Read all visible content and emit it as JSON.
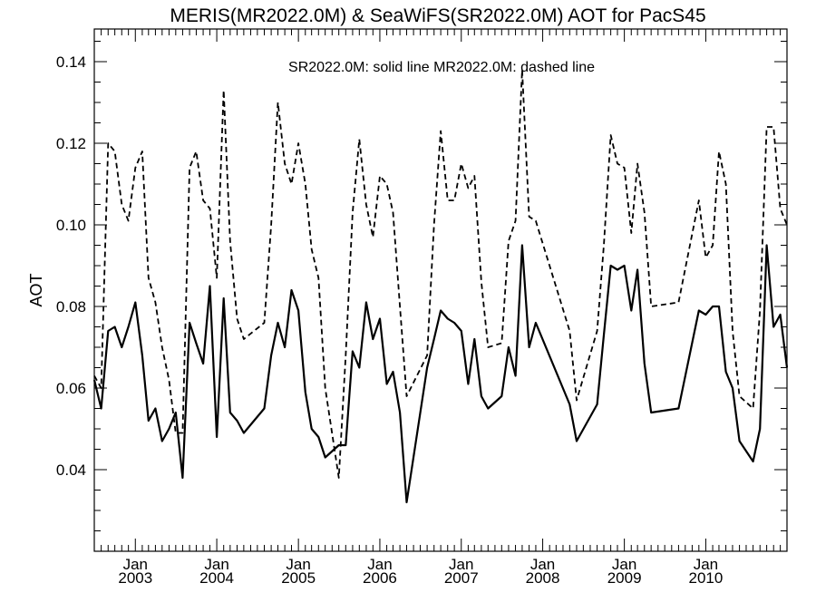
{
  "chart_data": {
    "type": "line",
    "title": "MERIS(MR2022.0M) & SeaWiFS(SR2022.0M)  AOT for PacS45",
    "annotation": "SR2022.0M: solid line   MR2022.0M: dashed line",
    "ylabel": "AOT",
    "xlabel": "",
    "xlim": [
      "2002-07-01",
      "2010-12-31"
    ],
    "ylim": [
      0.02,
      0.148
    ],
    "y_ticks": [
      {
        "value": 0.04,
        "label": "0.04"
      },
      {
        "value": 0.06,
        "label": "0.06"
      },
      {
        "value": 0.08,
        "label": "0.08"
      },
      {
        "value": 0.1,
        "label": "0.10"
      },
      {
        "value": 0.12,
        "label": "0.12"
      },
      {
        "value": 0.14,
        "label": "0.14"
      }
    ],
    "x_ticks": [
      {
        "date": "2003-01-01",
        "month": "Jan",
        "year": "2003"
      },
      {
        "date": "2004-01-01",
        "month": "Jan",
        "year": "2004"
      },
      {
        "date": "2005-01-01",
        "month": "Jan",
        "year": "2005"
      },
      {
        "date": "2006-01-01",
        "month": "Jan",
        "year": "2006"
      },
      {
        "date": "2007-01-01",
        "month": "Jan",
        "year": "2007"
      },
      {
        "date": "2008-01-01",
        "month": "Jan",
        "year": "2008"
      },
      {
        "date": "2009-01-01",
        "month": "Jan",
        "year": "2009"
      },
      {
        "date": "2010-01-01",
        "month": "Jan",
        "year": "2010"
      }
    ],
    "grid": false,
    "series": [
      {
        "style": "solid",
        "points": [
          [
            "2002-07-01",
            0.062
          ],
          [
            "2002-08-01",
            0.055
          ],
          [
            "2002-09-01",
            0.074
          ],
          [
            "2002-10-01",
            0.075
          ],
          [
            "2002-11-01",
            0.07
          ],
          [
            "2002-12-01",
            0.075
          ],
          [
            "2003-01-01",
            0.081
          ],
          [
            "2003-02-01",
            0.068
          ],
          [
            "2003-03-01",
            0.052
          ],
          [
            "2003-04-01",
            0.055
          ],
          [
            "2003-05-01",
            0.047
          ],
          [
            "2003-06-01",
            0.05
          ],
          [
            "2003-07-01",
            0.054
          ],
          [
            "2003-08-01",
            0.038
          ],
          [
            "2003-09-01",
            0.076
          ],
          [
            "2003-10-01",
            0.071
          ],
          [
            "2003-11-01",
            0.066
          ],
          [
            "2003-12-01",
            0.085
          ],
          [
            "2004-01-01",
            0.048
          ],
          [
            "2004-02-01",
            0.082
          ],
          [
            "2004-03-01",
            0.054
          ],
          [
            "2004-04-01",
            0.052
          ],
          [
            "2004-05-01",
            0.049
          ],
          [
            "2004-08-01",
            0.055
          ],
          [
            "2004-09-01",
            0.068
          ],
          [
            "2004-10-01",
            0.076
          ],
          [
            "2004-11-01",
            0.07
          ],
          [
            "2004-12-01",
            0.084
          ],
          [
            "2005-01-01",
            0.079
          ],
          [
            "2005-02-01",
            0.059
          ],
          [
            "2005-03-01",
            0.05
          ],
          [
            "2005-04-01",
            0.048
          ],
          [
            "2005-05-01",
            0.043
          ],
          [
            "2005-07-01",
            0.046
          ],
          [
            "2005-08-01",
            0.046
          ],
          [
            "2005-09-01",
            0.069
          ],
          [
            "2005-10-01",
            0.065
          ],
          [
            "2005-11-01",
            0.081
          ],
          [
            "2005-12-01",
            0.072
          ],
          [
            "2006-01-01",
            0.077
          ],
          [
            "2006-02-01",
            0.061
          ],
          [
            "2006-03-01",
            0.064
          ],
          [
            "2006-04-01",
            0.054
          ],
          [
            "2006-05-01",
            0.032
          ],
          [
            "2006-08-01",
            0.065
          ],
          [
            "2006-09-01",
            0.072
          ],
          [
            "2006-10-01",
            0.079
          ],
          [
            "2006-11-01",
            0.077
          ],
          [
            "2006-12-01",
            0.076
          ],
          [
            "2007-01-01",
            0.074
          ],
          [
            "2007-02-01",
            0.061
          ],
          [
            "2007-03-01",
            0.072
          ],
          [
            "2007-04-01",
            0.058
          ],
          [
            "2007-05-01",
            0.055
          ],
          [
            "2007-07-01",
            0.058
          ],
          [
            "2007-08-01",
            0.07
          ],
          [
            "2007-09-01",
            0.063
          ],
          [
            "2007-10-01",
            0.095
          ],
          [
            "2007-11-01",
            0.07
          ],
          [
            "2007-12-01",
            0.076
          ],
          [
            "2008-05-01",
            0.056
          ],
          [
            "2008-06-01",
            0.047
          ],
          [
            "2008-09-01",
            0.056
          ],
          [
            "2008-10-01",
            0.073
          ],
          [
            "2008-11-01",
            0.09
          ],
          [
            "2008-12-01",
            0.089
          ],
          [
            "2009-01-01",
            0.09
          ],
          [
            "2009-02-01",
            0.079
          ],
          [
            "2009-03-01",
            0.089
          ],
          [
            "2009-04-01",
            0.066
          ],
          [
            "2009-05-01",
            0.054
          ],
          [
            "2009-09-01",
            0.055
          ],
          [
            "2009-12-01",
            0.079
          ],
          [
            "2010-01-01",
            0.078
          ],
          [
            "2010-02-01",
            0.08
          ],
          [
            "2010-03-01",
            0.08
          ],
          [
            "2010-04-01",
            0.064
          ],
          [
            "2010-05-01",
            0.06
          ],
          [
            "2010-06-01",
            0.047
          ],
          [
            "2010-08-01",
            0.042
          ],
          [
            "2010-09-01",
            0.05
          ],
          [
            "2010-10-01",
            0.095
          ],
          [
            "2010-11-01",
            0.075
          ],
          [
            "2010-12-01",
            0.078
          ],
          [
            "2010-12-31",
            0.065
          ]
        ]
      },
      {
        "style": "dashed",
        "points": [
          [
            "2002-07-01",
            0.063
          ],
          [
            "2002-08-01",
            0.06
          ],
          [
            "2002-09-01",
            0.12
          ],
          [
            "2002-10-01",
            0.118
          ],
          [
            "2002-11-01",
            0.105
          ],
          [
            "2002-12-01",
            0.101
          ],
          [
            "2003-01-01",
            0.114
          ],
          [
            "2003-02-01",
            0.118
          ],
          [
            "2003-03-01",
            0.087
          ],
          [
            "2003-04-01",
            0.081
          ],
          [
            "2003-05-01",
            0.07
          ],
          [
            "2003-06-01",
            0.062
          ],
          [
            "2003-07-01",
            0.049
          ],
          [
            "2003-08-01",
            0.049
          ],
          [
            "2003-09-01",
            0.114
          ],
          [
            "2003-10-01",
            0.118
          ],
          [
            "2003-11-01",
            0.106
          ],
          [
            "2003-12-01",
            0.104
          ],
          [
            "2004-01-01",
            0.087
          ],
          [
            "2004-02-01",
            0.133
          ],
          [
            "2004-03-01",
            0.096
          ],
          [
            "2004-04-01",
            0.077
          ],
          [
            "2004-05-01",
            0.072
          ],
          [
            "2004-08-01",
            0.076
          ],
          [
            "2004-09-01",
            0.1
          ],
          [
            "2004-10-01",
            0.13
          ],
          [
            "2004-11-01",
            0.115
          ],
          [
            "2004-12-01",
            0.11
          ],
          [
            "2005-01-01",
            0.12
          ],
          [
            "2005-02-01",
            0.11
          ],
          [
            "2005-03-01",
            0.094
          ],
          [
            "2005-04-01",
            0.087
          ],
          [
            "2005-05-01",
            0.06
          ],
          [
            "2005-07-01",
            0.038
          ],
          [
            "2005-08-01",
            0.068
          ],
          [
            "2005-09-01",
            0.103
          ],
          [
            "2005-10-01",
            0.121
          ],
          [
            "2005-11-01",
            0.105
          ],
          [
            "2005-12-01",
            0.097
          ],
          [
            "2006-01-01",
            0.112
          ],
          [
            "2006-02-01",
            0.11
          ],
          [
            "2006-03-01",
            0.103
          ],
          [
            "2006-04-01",
            0.08
          ],
          [
            "2006-05-01",
            0.058
          ],
          [
            "2006-08-01",
            0.068
          ],
          [
            "2006-09-01",
            0.1
          ],
          [
            "2006-10-01",
            0.123
          ],
          [
            "2006-11-01",
            0.106
          ],
          [
            "2006-12-01",
            0.106
          ],
          [
            "2007-01-01",
            0.115
          ],
          [
            "2007-02-01",
            0.109
          ],
          [
            "2007-03-01",
            0.112
          ],
          [
            "2007-04-01",
            0.086
          ],
          [
            "2007-05-01",
            0.07
          ],
          [
            "2007-07-01",
            0.071
          ],
          [
            "2007-08-01",
            0.096
          ],
          [
            "2007-09-01",
            0.101
          ],
          [
            "2007-10-01",
            0.138
          ],
          [
            "2007-11-01",
            0.102
          ],
          [
            "2007-12-01",
            0.101
          ],
          [
            "2008-05-01",
            0.074
          ],
          [
            "2008-06-01",
            0.057
          ],
          [
            "2008-09-01",
            0.074
          ],
          [
            "2008-10-01",
            0.095
          ],
          [
            "2008-11-01",
            0.122
          ],
          [
            "2008-12-01",
            0.115
          ],
          [
            "2009-01-01",
            0.114
          ],
          [
            "2009-02-01",
            0.098
          ],
          [
            "2009-03-01",
            0.115
          ],
          [
            "2009-04-01",
            0.103
          ],
          [
            "2009-05-01",
            0.08
          ],
          [
            "2009-09-01",
            0.081
          ],
          [
            "2009-12-01",
            0.106
          ],
          [
            "2010-01-01",
            0.092
          ],
          [
            "2010-02-01",
            0.095
          ],
          [
            "2010-03-01",
            0.118
          ],
          [
            "2010-04-01",
            0.11
          ],
          [
            "2010-05-01",
            0.074
          ],
          [
            "2010-06-01",
            0.058
          ],
          [
            "2010-08-01",
            0.055
          ],
          [
            "2010-09-01",
            0.079
          ],
          [
            "2010-10-01",
            0.124
          ],
          [
            "2010-11-01",
            0.124
          ],
          [
            "2010-12-01",
            0.104
          ],
          [
            "2010-12-31",
            0.1
          ]
        ]
      }
    ]
  }
}
